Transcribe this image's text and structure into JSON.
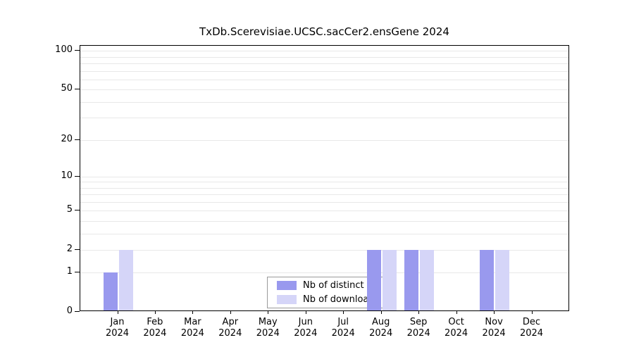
{
  "chart_data": {
    "type": "bar",
    "title": "TxDb.Scerevisiae.UCSC.sacCer2.ensGene 2024",
    "scale": "log1p",
    "categories": [
      "Jan",
      "Feb",
      "Mar",
      "Apr",
      "May",
      "Jun",
      "Jul",
      "Aug",
      "Sep",
      "Oct",
      "Nov",
      "Dec"
    ],
    "year_label": "2024",
    "series": [
      {
        "name": "Nb of distinct IPs",
        "color": "#9999ee",
        "values": [
          1,
          0,
          0,
          0,
          0,
          0,
          0,
          2,
          2,
          0,
          2,
          0
        ]
      },
      {
        "name": "Nb of downloads",
        "color": "#d5d5f8",
        "values": [
          2,
          0,
          0,
          0,
          0,
          0,
          0,
          2,
          2,
          0,
          2,
          0
        ]
      }
    ],
    "y_ticks": [
      0,
      1,
      2,
      5,
      10,
      20,
      50,
      100
    ],
    "y_minor_gridlines": [
      1,
      2,
      3,
      4,
      5,
      6,
      7,
      8,
      9,
      10,
      20,
      30,
      40,
      50,
      60,
      70,
      80,
      90,
      100
    ],
    "ylim": [
      0,
      100
    ],
    "grid": true,
    "legend_position": "bottom-center",
    "colors": {
      "grid": "#e8e8e8",
      "axis": "#000000",
      "legend_border": "#9a9a9a",
      "background": "#ffffff"
    }
  }
}
